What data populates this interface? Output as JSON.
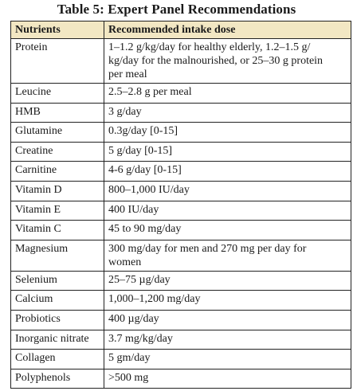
{
  "title": "Table 5: Expert Panel Recommendations",
  "headers": {
    "nutrients": "Nutrients",
    "dose": "Recommended intake dose"
  },
  "rows": [
    {
      "nutrient": "Protein",
      "dose": "1–1.2 g/kg/day for healthy elderly, 1.2–1.5 g/ kg/day for the malnourished, or 25–30 g protein per meal"
    },
    {
      "nutrient": "Leucine",
      "dose": "2.5–2.8 g per meal"
    },
    {
      "nutrient": "HMB",
      "dose": "3 g/day"
    },
    {
      "nutrient": "Glutamine",
      "dose": "0.3g/day [0-15]"
    },
    {
      "nutrient": "Creatine",
      "dose": "5 g/day [0-15]"
    },
    {
      "nutrient": "Carnitine",
      "dose": "4-6 g/day [0-15]"
    },
    {
      "nutrient": "Vitamin D",
      "dose": "800–1,000 IU/day"
    },
    {
      "nutrient": "Vitamin E",
      "dose": "400 IU/day"
    },
    {
      "nutrient": "Vitamin C",
      "dose": "45 to 90 mg/day"
    },
    {
      "nutrient": "Magnesium",
      "dose": "300 mg/day for men and 270 mg per day for women"
    },
    {
      "nutrient": "Selenium",
      "dose": "25–75 µg/day"
    },
    {
      "nutrient": "Calcium",
      "dose": "1,000–1,200 mg/day"
    },
    {
      "nutrient": "Probiotics",
      "dose": "400 µg/day"
    },
    {
      "nutrient": "Inorganic nitrate",
      "dose": "3.7 mg/kg/day"
    },
    {
      "nutrient": "Collagen",
      "dose": "5 gm/day"
    },
    {
      "nutrient": "Polyphenols",
      "dose": ">500 mg"
    }
  ],
  "colors": {
    "header_background": "#f2e7c3",
    "border": "#222222"
  }
}
